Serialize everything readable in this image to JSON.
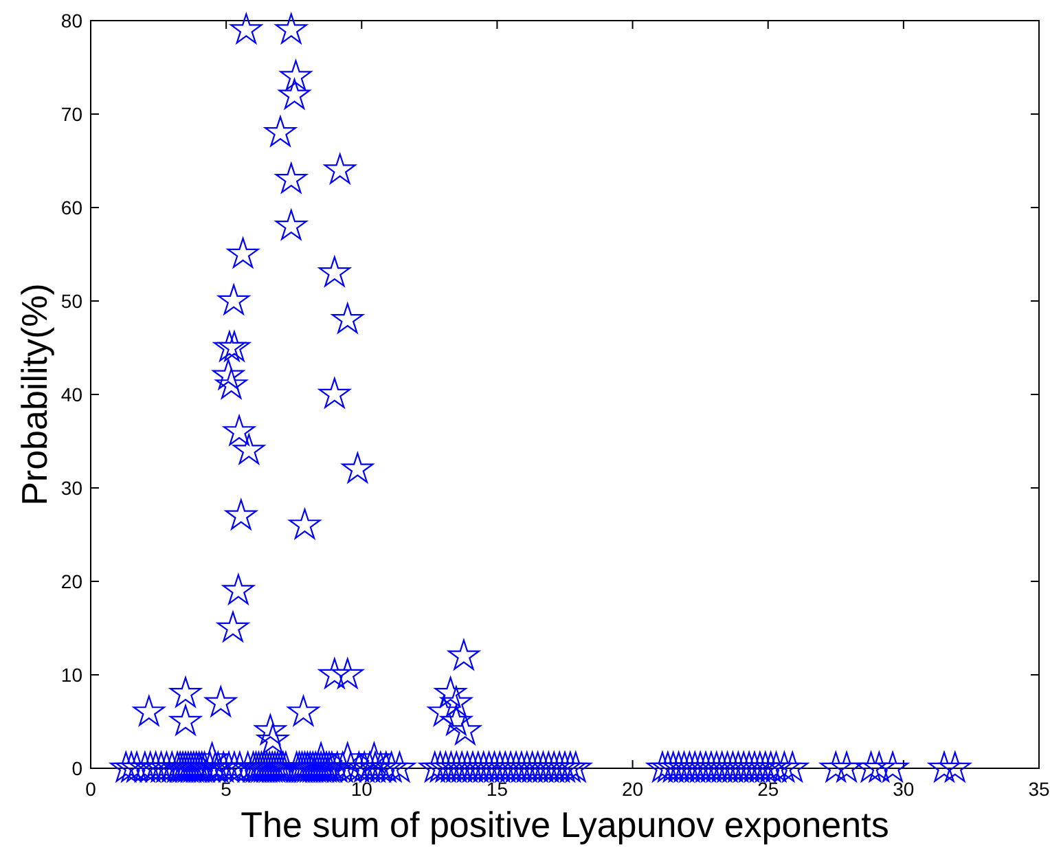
{
  "chart_data": {
    "type": "scatter",
    "xlabel": "The sum of positive Lyapunov exponents",
    "ylabel": "Probability(%)",
    "xlim": [
      0,
      35
    ],
    "ylim": [
      0,
      80
    ],
    "xticks": [
      0,
      5,
      10,
      15,
      20,
      25,
      30,
      35
    ],
    "yticks": [
      0,
      10,
      20,
      30,
      40,
      50,
      60,
      70,
      80
    ],
    "grid": false,
    "marker": "star",
    "series": [
      {
        "color": "#0000ff",
        "x": [
          5.74,
          7.4,
          7.57,
          7.52,
          7.0,
          9.2,
          7.4,
          7.4,
          5.62,
          9.0,
          5.28,
          9.48,
          5.12,
          5.3,
          5.08,
          5.19,
          9.0,
          5.48,
          5.84,
          9.85,
          5.55,
          7.9,
          5.45,
          5.25,
          9.0,
          9.48,
          3.5,
          2.15,
          4.8,
          3.5,
          7.85,
          6.63,
          6.72,
          13.77,
          13.28,
          13.03,
          13.49,
          13.49,
          13.82,
          4.48,
          8.5,
          9.48,
          10.46,
          1.3,
          1.5,
          1.7,
          2.0,
          2.2,
          2.4,
          2.6,
          2.8,
          3.0,
          3.2,
          3.3,
          3.4,
          3.5,
          3.6,
          3.7,
          3.8,
          3.9,
          4.0,
          4.1,
          4.2,
          4.4,
          4.6,
          4.7,
          4.9,
          5.1,
          5.3,
          5.5,
          5.8,
          6.0,
          6.1,
          6.2,
          6.3,
          6.4,
          6.5,
          6.6,
          6.7,
          6.8,
          6.9,
          7.0,
          7.1,
          7.2,
          7.6,
          7.7,
          7.8,
          7.9,
          8.0,
          8.1,
          8.2,
          8.3,
          8.4,
          8.5,
          8.6,
          8.7,
          8.8,
          8.9,
          9.1,
          9.3,
          9.6,
          9.9,
          10.1,
          10.3,
          10.5,
          10.7,
          10.9,
          11.1,
          11.4,
          12.7,
          12.9,
          13.1,
          13.3,
          13.5,
          13.7,
          13.9,
          14.1,
          14.3,
          14.5,
          14.7,
          14.9,
          15.1,
          15.3,
          15.5,
          15.7,
          15.9,
          16.1,
          16.3,
          16.5,
          16.7,
          16.9,
          17.1,
          17.3,
          17.5,
          17.7,
          17.9,
          21.1,
          21.3,
          21.5,
          21.7,
          21.9,
          22.1,
          22.3,
          22.5,
          22.7,
          22.9,
          23.1,
          23.3,
          23.5,
          23.7,
          23.9,
          24.1,
          24.3,
          24.5,
          24.7,
          24.9,
          25.1,
          25.3,
          25.6,
          25.9,
          27.5,
          27.9,
          28.8,
          29.1,
          29.6,
          31.5,
          31.9
        ],
        "values": [
          79,
          79,
          74,
          72,
          68,
          64,
          63,
          58,
          55,
          53,
          50,
          48,
          45,
          45,
          42,
          41,
          40,
          36,
          34,
          32,
          27,
          26,
          19,
          15,
          10,
          10,
          8,
          6,
          7,
          5,
          6,
          4,
          3,
          12,
          8,
          6,
          7,
          5,
          4,
          1,
          1,
          1,
          1,
          0,
          0,
          0,
          0,
          0,
          0,
          0,
          0,
          0,
          0,
          0,
          0,
          0,
          0,
          0,
          0,
          0,
          0,
          0,
          0,
          0,
          0,
          0,
          0,
          0,
          0,
          0,
          0,
          0,
          0,
          0,
          0,
          0,
          0,
          0,
          0,
          0,
          0,
          0,
          0,
          0,
          0,
          0,
          0,
          0,
          0,
          0,
          0,
          0,
          0,
          0,
          0,
          0,
          0,
          0,
          0,
          0,
          0,
          0,
          0,
          0,
          0,
          0,
          0,
          0,
          0,
          0,
          0,
          0,
          0,
          0,
          0,
          0,
          0,
          0,
          0,
          0,
          0,
          0,
          0,
          0,
          0,
          0,
          0,
          0,
          0,
          0,
          0,
          0,
          0,
          0,
          0,
          0,
          0,
          0,
          0,
          0,
          0,
          0,
          0,
          0,
          0,
          0,
          0,
          0,
          0,
          0,
          0,
          0,
          0,
          0,
          0,
          0,
          0,
          0,
          0,
          0,
          0,
          0,
          0,
          0,
          0,
          0,
          0
        ]
      }
    ]
  }
}
